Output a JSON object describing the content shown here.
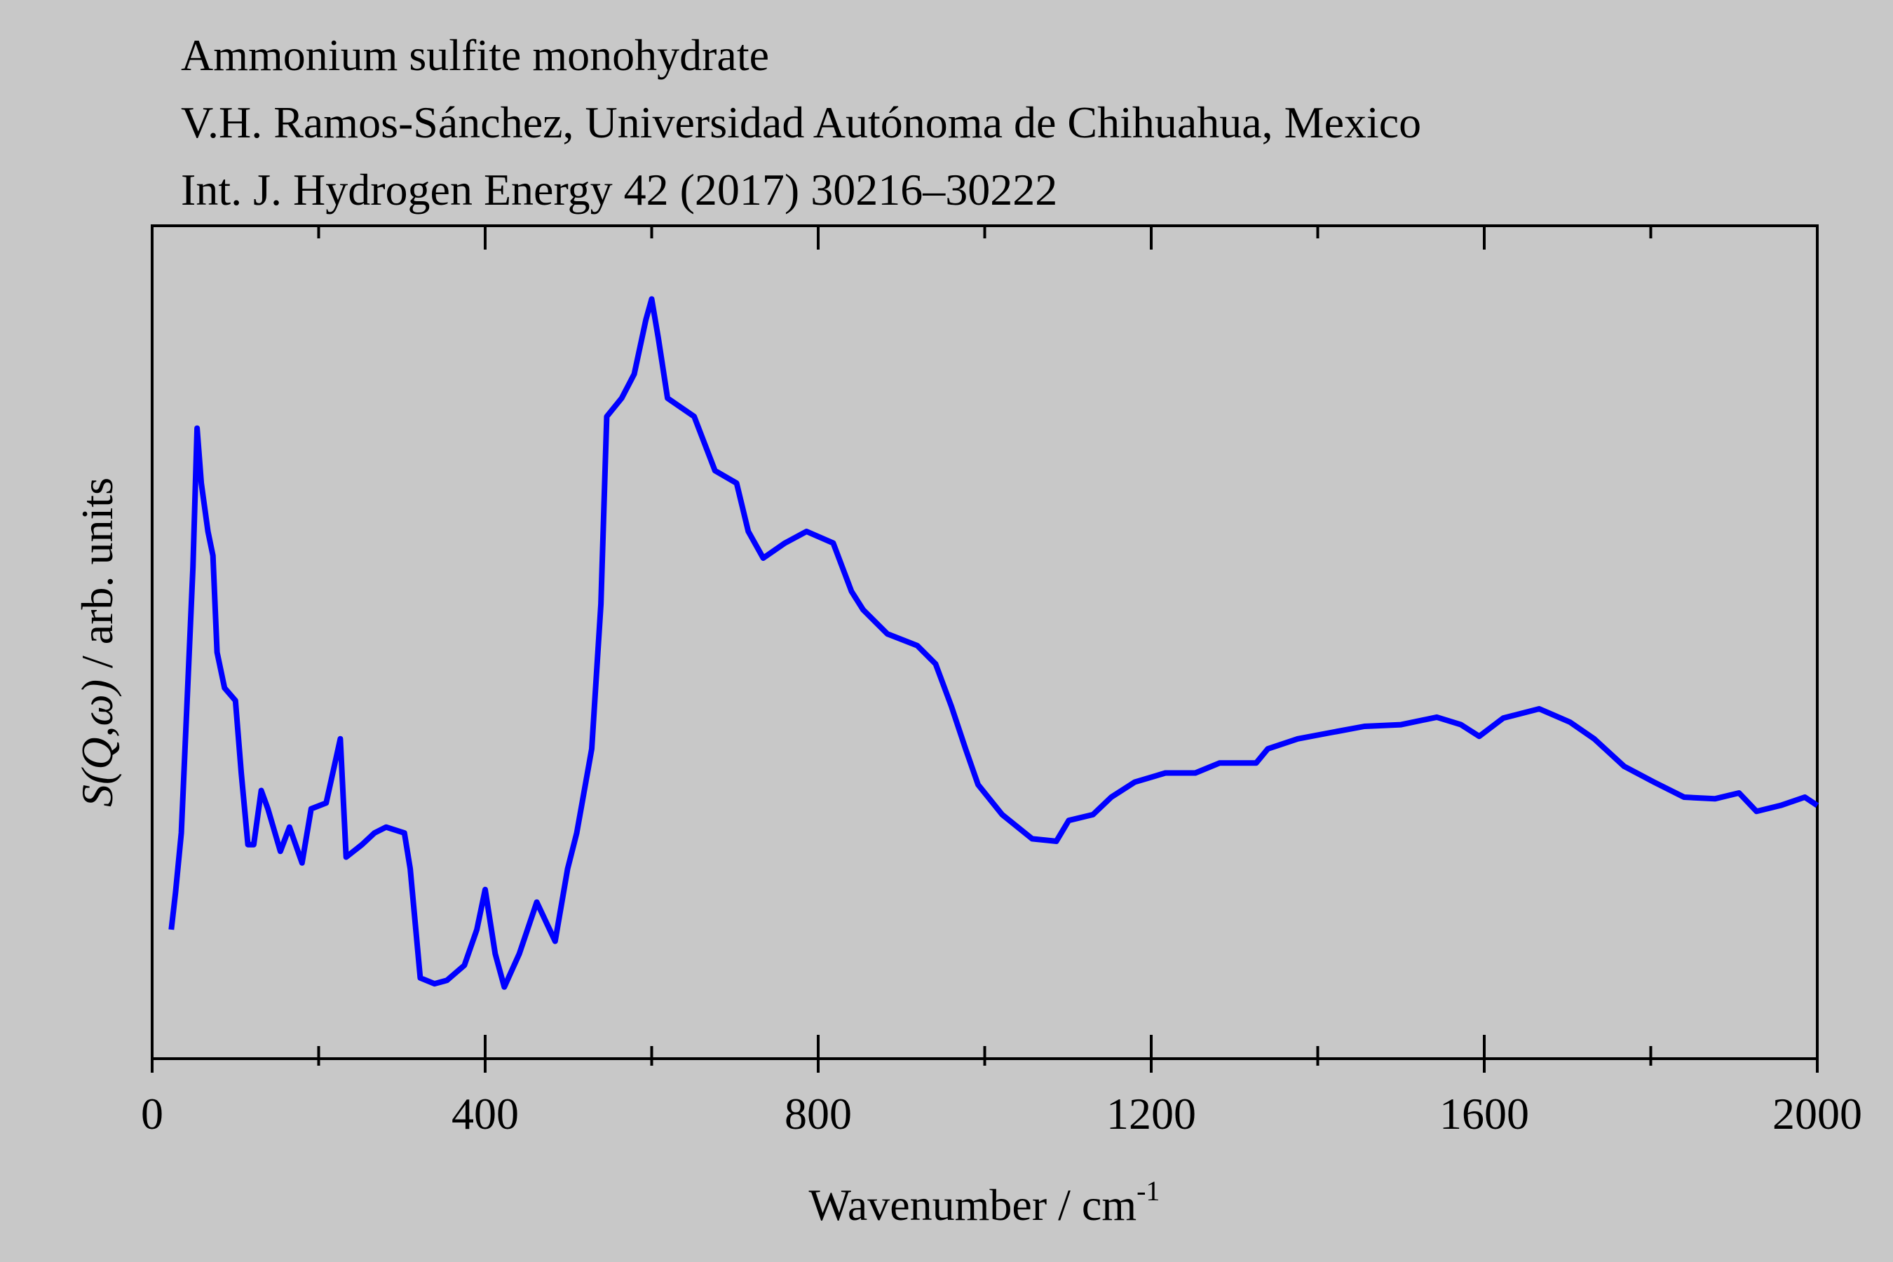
{
  "chart_data": {
    "type": "line",
    "title": "Ammonium sulfite monohydrate",
    "subtitle": [
      "V.H. Ramos-Sánchez, Universidad Autónoma de Chihuahua, Mexico",
      "Int. J. Hydrogen Energy 42 (2017) 30216–30222"
    ],
    "x_label": "Wavenumber / cm",
    "x_label_sup": "-1",
    "y_label_symbol": "S(Q,ω)",
    "y_label_units": " / arb. units",
    "xlim": [
      0,
      2000
    ],
    "xticks": [
      0,
      400,
      800,
      1200,
      1600,
      2000
    ],
    "xminor": [
      200,
      600,
      1000,
      1400,
      1800
    ],
    "ylim": [
      0,
      1
    ],
    "grid": false,
    "series": [
      {
        "color": "#0000ff",
        "x": [
          23,
          28,
          35,
          42,
          49,
          54,
          59,
          67,
          73,
          78,
          87,
          100,
          107,
          115,
          122,
          131,
          139,
          154,
          165,
          180,
          191,
          209,
          226,
          233,
          252,
          267,
          281,
          303,
          310,
          322,
          339,
          354,
          375,
          390,
          400,
          412,
          423,
          441,
          462,
          484,
          499,
          510,
          528,
          539,
          546,
          564,
          579,
          593,
          600,
          608,
          619,
          651,
          676,
          702,
          716,
          734,
          760,
          786,
          818,
          840,
          854,
          883,
          919,
          941,
          960,
          977,
          992,
          1021,
          1057,
          1086,
          1101,
          1130,
          1152,
          1180,
          1217,
          1253,
          1282,
          1326,
          1340,
          1376,
          1413,
          1456,
          1500,
          1543,
          1572,
          1594,
          1623,
          1666,
          1703,
          1732,
          1768,
          1804,
          1840,
          1877,
          1906,
          1927,
          1956,
          1985,
          2000
        ],
        "values": [
          0.155,
          0.199,
          0.271,
          0.43,
          0.59,
          0.757,
          0.691,
          0.633,
          0.604,
          0.488,
          0.445,
          0.43,
          0.343,
          0.257,
          0.257,
          0.322,
          0.3,
          0.249,
          0.278,
          0.235,
          0.3,
          0.307,
          0.384,
          0.242,
          0.257,
          0.271,
          0.278,
          0.271,
          0.228,
          0.097,
          0.09,
          0.094,
          0.112,
          0.155,
          0.203,
          0.126,
          0.086,
          0.126,
          0.188,
          0.141,
          0.228,
          0.271,
          0.372,
          0.546,
          0.771,
          0.793,
          0.822,
          0.887,
          0.912,
          0.865,
          0.793,
          0.771,
          0.706,
          0.691,
          0.633,
          0.601,
          0.619,
          0.633,
          0.619,
          0.561,
          0.539,
          0.51,
          0.496,
          0.474,
          0.423,
          0.372,
          0.329,
          0.293,
          0.264,
          0.261,
          0.286,
          0.293,
          0.314,
          0.332,
          0.343,
          0.343,
          0.355,
          0.355,
          0.372,
          0.384,
          0.391,
          0.399,
          0.401,
          0.41,
          0.401,
          0.387,
          0.409,
          0.42,
          0.404,
          0.384,
          0.351,
          0.332,
          0.314,
          0.312,
          0.319,
          0.297,
          0.304,
          0.314,
          0.304
        ]
      }
    ]
  }
}
